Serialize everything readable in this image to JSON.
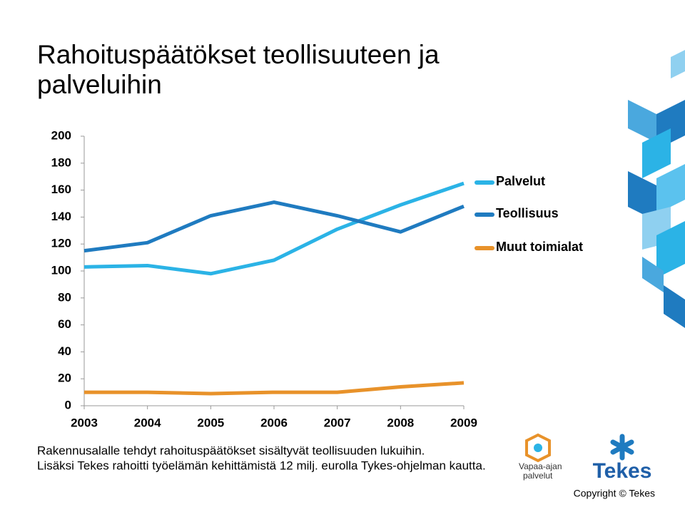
{
  "chart_data": {
    "type": "line",
    "title": "Rahoituspäätökset teollisuuteen ja palveluihin",
    "categories": [
      "2003",
      "2004",
      "2005",
      "2006",
      "2007",
      "2008",
      "2009"
    ],
    "series": [
      {
        "name": "Palvelut",
        "color": "#2bb3e6",
        "values": [
          103,
          104,
          98,
          108,
          131,
          149,
          165
        ]
      },
      {
        "name": "Teollisuus",
        "color": "#1f7bc0",
        "values": [
          115,
          121,
          141,
          151,
          141,
          129,
          148
        ]
      },
      {
        "name": "Muut toimialat",
        "color": "#e8922a",
        "values": [
          10,
          10,
          9,
          10,
          10,
          14,
          17
        ]
      }
    ],
    "ylim": [
      0,
      200
    ],
    "yticks": [
      0,
      20,
      40,
      60,
      80,
      100,
      120,
      140,
      160,
      180,
      200
    ],
    "grid": false,
    "legend": "right"
  },
  "footnotes": [
    "Rakennusalalle tehdyt rahoituspäätökset sisältyvät teollisuuden lukuihin.",
    "Lisäksi Tekes rahoitti työelämän kehittämistä 12 milj. eurolla Tykes-ohjelman kautta."
  ],
  "logos": {
    "vapaa_ajan": [
      "Vapaa-ajan",
      "palvelut"
    ],
    "tekes": "Tekes"
  },
  "copyright": "Copyright © Tekes"
}
